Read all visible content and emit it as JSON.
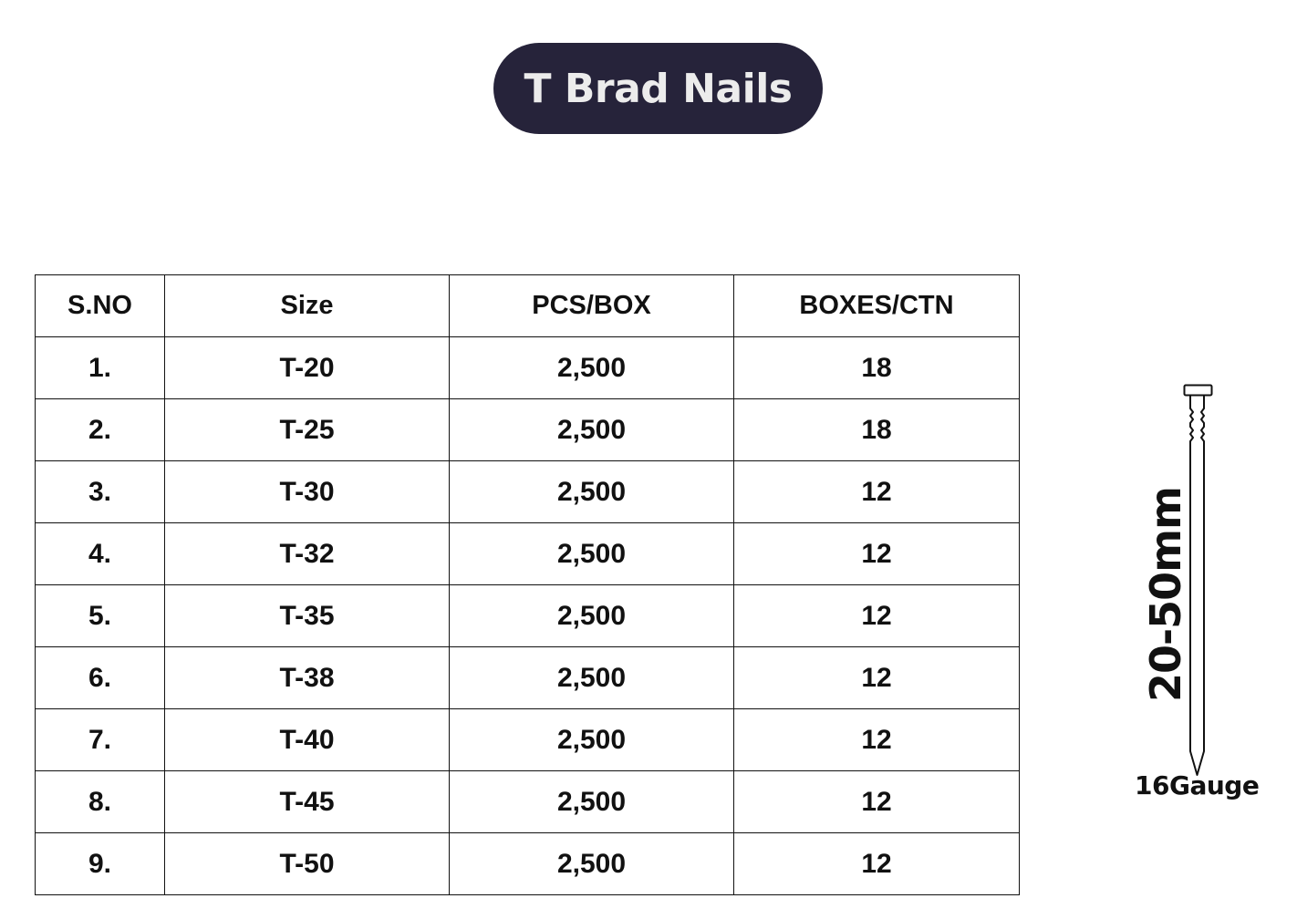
{
  "title": "T Brad Nails",
  "table": {
    "headers": [
      "S.NO",
      "Size",
      "PCS/BOX",
      "BOXES/CTN"
    ],
    "rows": [
      [
        "1.",
        "T-20",
        "2,500",
        "18"
      ],
      [
        "2.",
        "T-25",
        "2,500",
        "18"
      ],
      [
        "3.",
        "T-30",
        "2,500",
        "12"
      ],
      [
        "4.",
        "T-32",
        "2,500",
        "12"
      ],
      [
        "5.",
        "T-35",
        "2,500",
        "12"
      ],
      [
        "6.",
        "T-38",
        "2,500",
        "12"
      ],
      [
        "7.",
        "T-40",
        "2,500",
        "12"
      ],
      [
        "8.",
        "T-45",
        "2,500",
        "12"
      ],
      [
        "9.",
        "T-50",
        "2,500",
        "12"
      ]
    ]
  },
  "nail": {
    "length_label": "20-50mm",
    "gauge_label": "16Gauge",
    "icon": "brad-nail-icon"
  },
  "colors": {
    "title_background": "#26233a",
    "title_text": "#ececec",
    "text": "#111111",
    "background": "#ffffff"
  }
}
